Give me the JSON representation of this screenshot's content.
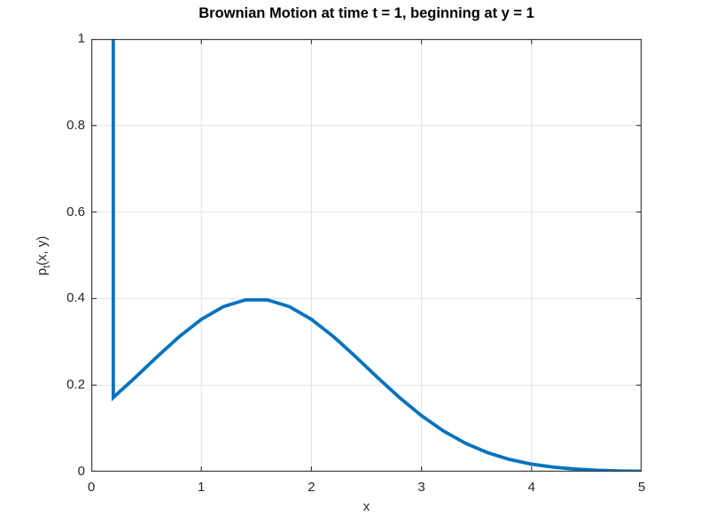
{
  "figure": {
    "title": "Brownian Motion at time t = 1, beginning at y = 1",
    "xlabel": "x",
    "ylabel": {
      "base": "p",
      "sub": "t",
      "rest": "(x, y)"
    }
  },
  "chart_data": {
    "type": "line",
    "title": "Brownian Motion at time t = 1, beginning at y = 1",
    "xlabel": "x",
    "ylabel": "p_t(x, y)",
    "xlim": [
      0,
      5
    ],
    "ylim": [
      0,
      1
    ],
    "x_ticks": [
      0,
      1,
      2,
      3,
      4,
      5
    ],
    "y_ticks": [
      0,
      0.2,
      0.4,
      0.6,
      0.8,
      1
    ],
    "x_tick_labels": [
      "0",
      "1",
      "2",
      "3",
      "4",
      "5"
    ],
    "y_tick_labels": [
      "0",
      "0.2",
      "0.4",
      "0.6",
      "0.8",
      "1"
    ],
    "grid": true,
    "legend": false,
    "line_color": "#0072BD",
    "line_width": 3.8,
    "axis_color": "#404040",
    "grid_color": "#e0e0e0",
    "tick_label_color": "#262626",
    "note": "Vertical spike at x = 0.2 rises to top of axes (clipped at ylim max 1); smooth curve peaks flat at ~0.397 between x = 1.4 and 1.6",
    "series": [
      {
        "name": "p_t(x, y)",
        "points": [
          [
            0.2,
            1.0
          ],
          [
            0.2,
            0.1714
          ],
          [
            0.4,
            0.2179
          ],
          [
            0.6,
            0.2661
          ],
          [
            0.8,
            0.3123
          ],
          [
            1.0,
            0.3521
          ],
          [
            1.2,
            0.3814
          ],
          [
            1.4,
            0.397
          ],
          [
            1.6,
            0.397
          ],
          [
            1.8,
            0.3814
          ],
          [
            2.0,
            0.3521
          ],
          [
            2.2,
            0.3123
          ],
          [
            2.4,
            0.2661
          ],
          [
            2.6,
            0.2179
          ],
          [
            2.8,
            0.1714
          ],
          [
            3.0,
            0.1295
          ],
          [
            3.2,
            0.094
          ],
          [
            3.4,
            0.0656
          ],
          [
            3.6,
            0.044
          ],
          [
            3.8,
            0.0283
          ],
          [
            4.0,
            0.0175
          ],
          [
            4.2,
            0.0104
          ],
          [
            4.4,
            0.006
          ],
          [
            4.6,
            0.0033
          ],
          [
            4.8,
            0.0017
          ],
          [
            5.0,
            0.0009
          ]
        ]
      }
    ]
  }
}
